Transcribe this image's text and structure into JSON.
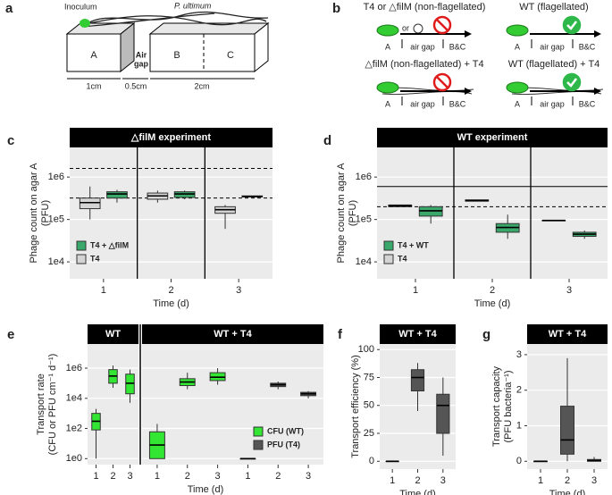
{
  "schematic_a": {
    "panel": "a",
    "inoculum": "Inoculum",
    "pathogen": "P. ultimum",
    "boxes": [
      "A",
      "B",
      "C"
    ],
    "air_gap": [
      "Air",
      "gap"
    ],
    "dims": [
      "1cm",
      "0.5cm",
      "2cm"
    ]
  },
  "schematic_b": {
    "panel": "b",
    "or": "or",
    "axis_labels": [
      "A",
      "air gap",
      "B&C"
    ],
    "conditions": [
      "T4 or △filM (non-flagellated)",
      "WT (flagellated)",
      "△filM (non-flagellated) + T4",
      "WT (flagellated) + T4"
    ]
  },
  "chart_data": [
    {
      "type": "box",
      "panel": "c",
      "title": "△filM experiment",
      "ylabel": [
        "Phage count on agar A",
        "(PFU)"
      ],
      "xlabel": "Time (d)",
      "categories": [
        "1",
        "2",
        "3"
      ],
      "log_scale": true,
      "ylim": [
        4000,
        5000000
      ],
      "yticks": [
        {
          "value": 10000,
          "label": "1e4"
        },
        {
          "value": 100000,
          "label": "1e5"
        },
        {
          "value": 1000000,
          "label": "1e6"
        }
      ],
      "grid": true,
      "legend": "bottom left",
      "separators": true,
      "hlines": [
        {
          "value": 1600000,
          "style": "dashed"
        },
        {
          "value": 320000,
          "style": "dashed"
        }
      ],
      "series": [
        {
          "name": "T4 + △filM",
          "color": "#3aa86b",
          "values": [
            {
              "low": 250000,
              "q1": 320000,
              "median": 400000,
              "q3": 450000,
              "high": 500000
            },
            {
              "low": 300000,
              "q1": 330000,
              "median": 400000,
              "q3": 450000,
              "high": 480000
            },
            {
              "low": 340000,
              "q1": 340000,
              "median": 350000,
              "q3": 360000,
              "high": 360000
            }
          ]
        },
        {
          "name": "T4",
          "color": "#d4d4d4",
          "values": [
            {
              "low": 100000,
              "q1": 180000,
              "median": 250000,
              "q3": 320000,
              "high": 600000
            },
            {
              "low": 250000,
              "q1": 300000,
              "median": 360000,
              "q3": 420000,
              "high": 480000
            },
            {
              "low": 60000,
              "q1": 140000,
              "median": 170000,
              "q3": 200000,
              "high": 220000
            }
          ]
        }
      ]
    },
    {
      "type": "box",
      "panel": "d",
      "title": "WT experiment",
      "ylabel": [
        "Phage count on agar A",
        "(PFU)"
      ],
      "xlabel": "Time (d)",
      "categories": [
        "1",
        "2",
        "3"
      ],
      "log_scale": true,
      "ylim": [
        4000,
        5000000
      ],
      "yticks": [
        {
          "value": 10000,
          "label": "1e4"
        },
        {
          "value": 100000,
          "label": "1e5"
        },
        {
          "value": 1000000,
          "label": "1e6"
        }
      ],
      "grid": true,
      "legend": "bottom left",
      "separators": true,
      "hlines": [
        {
          "value": 600000,
          "style": "solid"
        },
        {
          "value": 200000,
          "style": "dashed"
        }
      ],
      "series": [
        {
          "name": "T4 + WT",
          "color": "#3aa86b",
          "values": [
            {
              "low": 80000,
              "q1": 120000,
              "median": 160000,
              "q3": 200000,
              "high": 220000
            },
            {
              "low": 35000,
              "q1": 50000,
              "median": 65000,
              "q3": 80000,
              "high": 130000
            },
            {
              "low": 35000,
              "q1": 40000,
              "median": 45000,
              "q3": 50000,
              "high": 55000
            }
          ]
        },
        {
          "name": "T4",
          "color": "#d4d4d4",
          "values": [
            {
              "low": 200000,
              "q1": 200000,
              "median": 210000,
              "q3": 220000,
              "high": 220000
            },
            {
              "low": 270000,
              "q1": 270000,
              "median": 280000,
              "q3": 290000,
              "high": 290000
            },
            {
              "low": 95000,
              "q1": 95000,
              "median": 95000,
              "q3": 95000,
              "high": 95000
            }
          ]
        }
      ]
    },
    {
      "type": "box",
      "panel": "e",
      "ylabel": [
        "Transport rate",
        "(CFU or PFU cm⁻¹ d⁻¹)"
      ],
      "xlabel": "Time (d)",
      "facets": [
        "WT",
        "WT + T4"
      ],
      "facet_categories": [
        [
          "1",
          "2",
          "3"
        ],
        [
          "1",
          "2",
          "3",
          "1",
          "2",
          "3"
        ]
      ],
      "log_scale": true,
      "ylim": [
        0.4,
        40000000
      ],
      "yticks": [
        {
          "value": 1,
          "label": "1e0"
        },
        {
          "value": 100,
          "label": "1e2"
        },
        {
          "value": 10000,
          "label": "1e4"
        },
        {
          "value": 1000000,
          "label": "1e6"
        }
      ],
      "grid": true,
      "legend": "bottom right",
      "series": [
        {
          "name": "CFU (WT)",
          "color": "#33e633",
          "values": [
            [
              {
                "low": 1,
                "q1": 80,
                "median": 300,
                "q3": 1000,
                "high": 2000
              },
              {
                "low": 50000,
                "q1": 100000,
                "median": 300000,
                "q3": 800000,
                "high": 1500000
              },
              {
                "low": 5000,
                "q1": 20000,
                "median": 100000,
                "q3": 400000,
                "high": 800000
              }
            ],
            [
              {
                "low": 1,
                "q1": 1,
                "median": 8,
                "q3": 60,
                "high": 200
              },
              {
                "low": 40000,
                "q1": 70000,
                "median": 120000,
                "q3": 200000,
                "high": 500000
              },
              {
                "low": 80000,
                "q1": 150000,
                "median": 250000,
                "q3": 500000,
                "high": 1000000
              },
              null,
              null,
              null
            ]
          ]
        },
        {
          "name": "PFU (T4)",
          "color": "#555555",
          "values": [
            [
              null,
              null,
              null
            ],
            [
              null,
              null,
              null,
              {
                "low": 1,
                "q1": 1,
                "median": 1,
                "q3": 1,
                "high": 1
              },
              {
                "low": 40000,
                "q1": 60000,
                "median": 80000,
                "q3": 100000,
                "high": 130000
              },
              {
                "low": 10000,
                "q1": 15000,
                "median": 20000,
                "q3": 25000,
                "high": 30000
              }
            ]
          ]
        }
      ]
    },
    {
      "type": "box",
      "panel": "f",
      "title": "WT + T4",
      "ylabel": [
        "Transport efficiency (%)"
      ],
      "xlabel": "Time (d)",
      "categories": [
        "1",
        "2",
        "3"
      ],
      "ylim": [
        -7,
        105
      ],
      "yticks": [
        0,
        25,
        50,
        75,
        100
      ],
      "grid": true,
      "series": [
        {
          "name": "PFU (T4)",
          "color": "#555555",
          "values": [
            {
              "low": 0,
              "q1": 0,
              "median": 0,
              "q3": 0,
              "high": 0
            },
            {
              "low": 45,
              "q1": 63,
              "median": 75,
              "q3": 82,
              "high": 88
            },
            {
              "low": 5,
              "q1": 25,
              "median": 50,
              "q3": 60,
              "high": 75
            }
          ]
        }
      ]
    },
    {
      "type": "box",
      "panel": "g",
      "title": "WT + T4",
      "ylabel": [
        "Transport capacity",
        "(PFU bacteria⁻¹)"
      ],
      "xlabel": "Time (d)",
      "categories": [
        "1",
        "2",
        "3"
      ],
      "ylim": [
        -0.22,
        3.3
      ],
      "yticks": [
        0,
        1,
        2,
        3
      ],
      "grid": true,
      "series": [
        {
          "name": "PFU (T4)",
          "color": "#555555",
          "values": [
            {
              "low": 0,
              "q1": 0,
              "median": 0,
              "q3": 0,
              "high": 0
            },
            {
              "low": 0,
              "q1": 0.2,
              "median": 0.6,
              "q3": 1.55,
              "high": 2.9
            },
            {
              "low": 0,
              "q1": 0,
              "median": 0.02,
              "q3": 0.05,
              "high": 0.12
            }
          ]
        }
      ]
    }
  ]
}
